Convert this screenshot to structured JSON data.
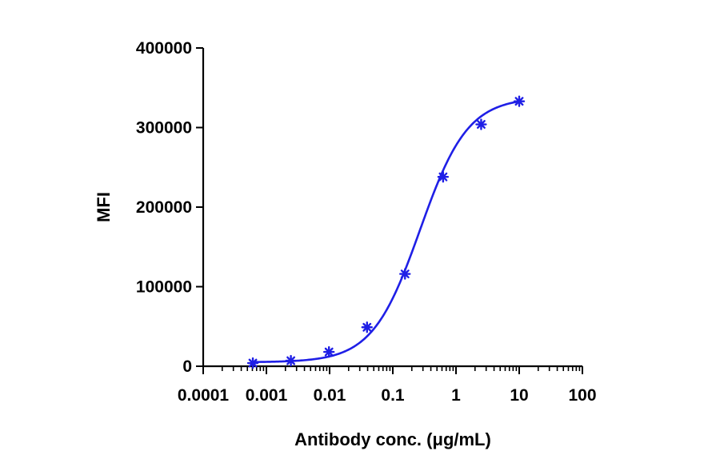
{
  "chart_data": {
    "type": "scatter",
    "xlabel": "Antibody conc. (μg/mL)",
    "ylabel": "MFI",
    "x_scale": "log",
    "xlim": [
      0.0001,
      100
    ],
    "ylim": [
      0,
      400000
    ],
    "x_ticks": [
      0.0001,
      0.001,
      0.01,
      0.1,
      1,
      10,
      100
    ],
    "x_tick_labels": [
      "0.0001",
      "0.001",
      "0.01",
      "0.1",
      "1",
      "10",
      "100"
    ],
    "y_ticks": [
      0,
      100000,
      200000,
      300000,
      400000
    ],
    "y_tick_labels": [
      "0",
      "100000",
      "200000",
      "300000",
      "400000"
    ],
    "grid": false,
    "legend": "none",
    "series": [
      {
        "color": "#1f1fe6",
        "marker": "asterisk",
        "points": [
          {
            "x": 0.00061,
            "y": 4000
          },
          {
            "x": 0.00244,
            "y": 7000
          },
          {
            "x": 0.00977,
            "y": 18000
          },
          {
            "x": 0.0391,
            "y": 49000
          },
          {
            "x": 0.156,
            "y": 116000
          },
          {
            "x": 0.625,
            "y": 238000
          },
          {
            "x": 2.5,
            "y": 304000
          },
          {
            "x": 10,
            "y": 333000
          }
        ],
        "fit": {
          "model": "four-parameter logistic",
          "bottom": 5000,
          "top": 338000,
          "ec50": 0.27,
          "hill": 1.15,
          "x_range": [
            0.00061,
            10
          ]
        }
      }
    ]
  }
}
